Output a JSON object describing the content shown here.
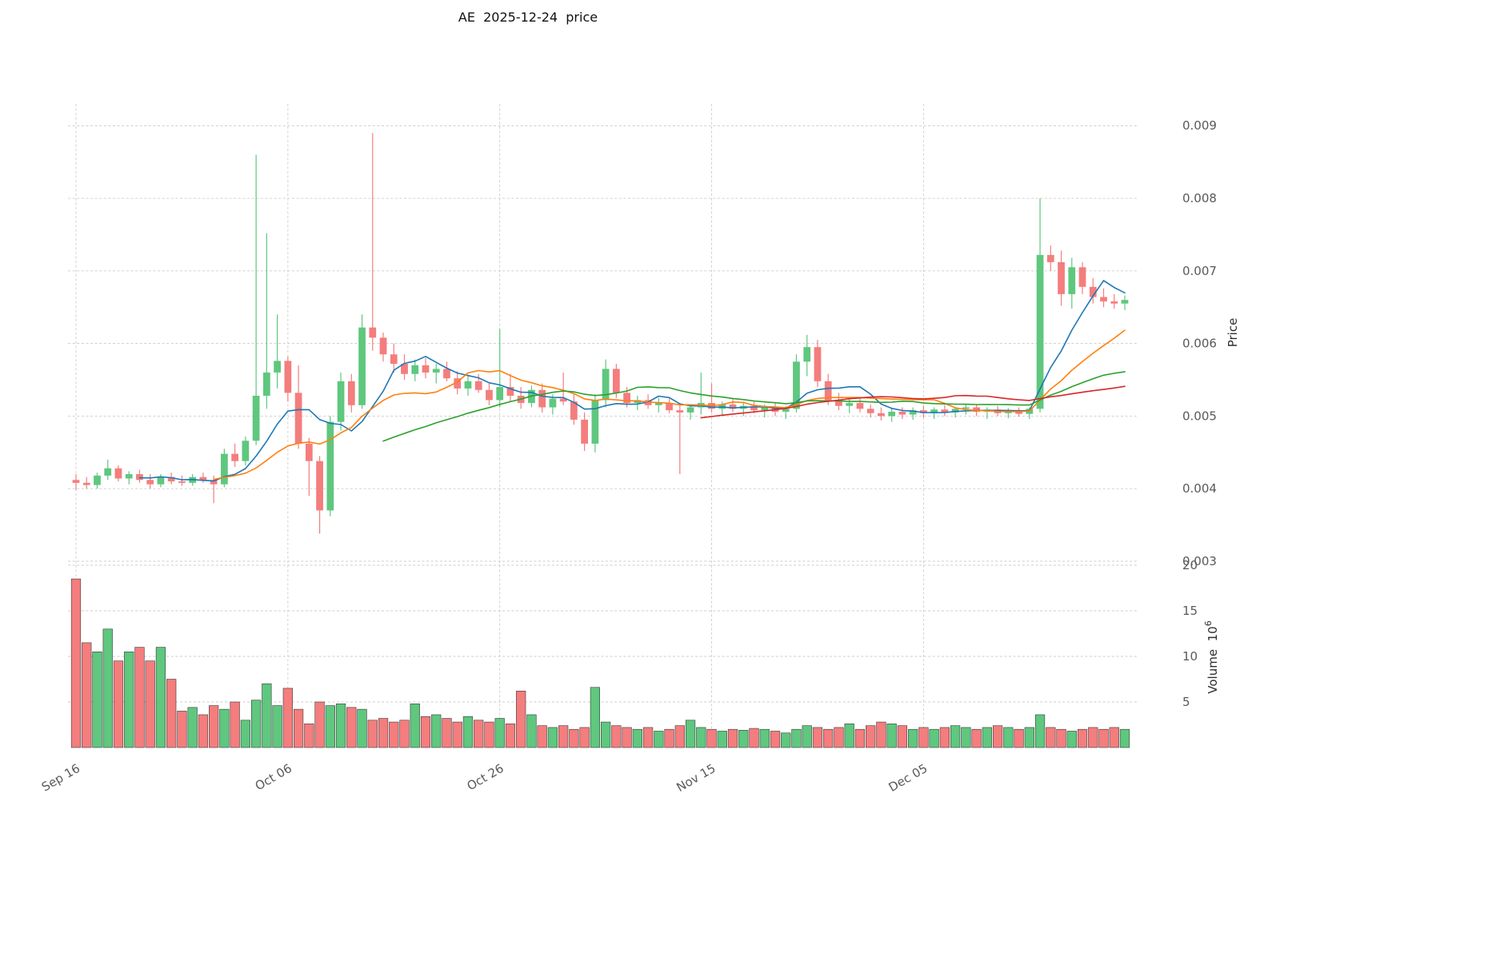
{
  "title": "AE  2025-12-24  price",
  "axes": {
    "price_label": "Price",
    "volume_label": "Volume",
    "volume_unit_base": "  10",
    "volume_exponent": "6",
    "price_ticks": [
      0.003,
      0.004,
      0.005,
      0.006,
      0.007,
      0.008,
      0.009
    ],
    "volume_ticks": [
      5,
      10,
      15,
      20
    ],
    "x_tick_labels": [
      "Sep 16",
      "Oct 06",
      "Oct 26",
      "Nov 15",
      "Dec 05"
    ],
    "x_tick_indices": [
      0,
      20,
      40,
      60,
      80
    ]
  },
  "colors": {
    "up": "#5fc77e",
    "down": "#f47d7d",
    "volume_edge": "#3a3a3a",
    "grid": "#cccccc",
    "tick_text": "#595959"
  },
  "chart_data": {
    "type": "candlestick+volume",
    "title": "AE  2025-12-24  price",
    "ylabel": "Price",
    "ylabel_volume": "Volume 10^6",
    "ylim_price": [
      0.003,
      0.0093
    ],
    "ylim_volume": [
      0,
      20
    ],
    "grid": true,
    "dates": [
      "09-16",
      "09-17",
      "09-18",
      "09-19",
      "09-20",
      "09-21",
      "09-22",
      "09-23",
      "09-24",
      "09-25",
      "09-26",
      "09-27",
      "09-28",
      "09-29",
      "09-30",
      "10-01",
      "10-02",
      "10-03",
      "10-04",
      "10-05",
      "10-06",
      "10-07",
      "10-08",
      "10-09",
      "10-10",
      "10-11",
      "10-12",
      "10-13",
      "10-14",
      "10-15",
      "10-16",
      "10-17",
      "10-18",
      "10-19",
      "10-20",
      "10-21",
      "10-22",
      "10-23",
      "10-24",
      "10-25",
      "10-26",
      "10-27",
      "10-28",
      "10-29",
      "10-30",
      "10-31",
      "11-01",
      "11-02",
      "11-03",
      "11-04",
      "11-05",
      "11-06",
      "11-07",
      "11-08",
      "11-09",
      "11-10",
      "11-11",
      "11-12",
      "11-13",
      "11-14",
      "11-15",
      "11-16",
      "11-17",
      "11-18",
      "11-19",
      "11-20",
      "11-21",
      "11-22",
      "11-23",
      "11-24",
      "11-25",
      "11-26",
      "11-27",
      "11-28",
      "11-29",
      "11-30",
      "12-01",
      "12-02",
      "12-03",
      "12-04",
      "12-05",
      "12-06",
      "12-07",
      "12-08",
      "12-09",
      "12-10",
      "12-11",
      "12-12",
      "12-13",
      "12-14",
      "12-15",
      "12-16",
      "12-17",
      "12-18",
      "12-19",
      "12-20",
      "12-21",
      "12-22",
      "12-23",
      "12-24"
    ],
    "open": [
      0.00412,
      0.00408,
      0.00405,
      0.00418,
      0.00428,
      0.00414,
      0.0042,
      0.00412,
      0.00406,
      0.00416,
      0.0041,
      0.00408,
      0.00416,
      0.00412,
      0.00406,
      0.00448,
      0.00438,
      0.00466,
      0.00528,
      0.0056,
      0.00576,
      0.00532,
      0.00462,
      0.00438,
      0.0037,
      0.00492,
      0.00548,
      0.00515,
      0.00622,
      0.00608,
      0.00585,
      0.00572,
      0.00558,
      0.0057,
      0.0056,
      0.00565,
      0.00552,
      0.00538,
      0.00548,
      0.00536,
      0.00522,
      0.0054,
      0.00528,
      0.00518,
      0.00536,
      0.00512,
      0.00524,
      0.0052,
      0.00495,
      0.00462,
      0.00522,
      0.00565,
      0.00532,
      0.00518,
      0.00522,
      0.00515,
      0.00518,
      0.00508,
      0.00505,
      0.00512,
      0.00518,
      0.0051,
      0.00516,
      0.0051,
      0.00514,
      0.00508,
      0.00512,
      0.00506,
      0.0051,
      0.00575,
      0.00595,
      0.00548,
      0.00522,
      0.00514,
      0.00518,
      0.0051,
      0.00504,
      0.005,
      0.00506,
      0.00502,
      0.00508,
      0.00504,
      0.00509,
      0.00505,
      0.0051,
      0.00512,
      0.00506,
      0.00509,
      0.00504,
      0.00508,
      0.00503,
      0.0051,
      0.00722,
      0.00712,
      0.00668,
      0.00705,
      0.00678,
      0.00664,
      0.00658,
      0.00655
    ],
    "high": [
      0.0042,
      0.00416,
      0.00422,
      0.0044,
      0.00432,
      0.00424,
      0.00426,
      0.0042,
      0.0042,
      0.00422,
      0.00418,
      0.0042,
      0.00422,
      0.00418,
      0.00455,
      0.00462,
      0.00472,
      0.0086,
      0.00752,
      0.0064,
      0.00582,
      0.0057,
      0.0047,
      0.00445,
      0.005,
      0.0056,
      0.00558,
      0.0064,
      0.0089,
      0.00615,
      0.006,
      0.00585,
      0.00578,
      0.0058,
      0.00572,
      0.00575,
      0.00562,
      0.00555,
      0.00558,
      0.00545,
      0.0062,
      0.00558,
      0.0054,
      0.00542,
      0.00545,
      0.0053,
      0.0056,
      0.0053,
      0.00505,
      0.0053,
      0.00578,
      0.00572,
      0.0054,
      0.00528,
      0.0053,
      0.00525,
      0.00524,
      0.00518,
      0.00515,
      0.0056,
      0.00545,
      0.0052,
      0.00524,
      0.00518,
      0.0052,
      0.00516,
      0.00518,
      0.00514,
      0.00585,
      0.00612,
      0.00605,
      0.00558,
      0.00532,
      0.00524,
      0.00524,
      0.00516,
      0.00512,
      0.0051,
      0.00512,
      0.00512,
      0.00514,
      0.00512,
      0.00515,
      0.00512,
      0.00516,
      0.00516,
      0.00512,
      0.00514,
      0.00511,
      0.00512,
      0.00512,
      0.008,
      0.00735,
      0.00728,
      0.00718,
      0.00712,
      0.0069,
      0.00676,
      0.00668,
      0.00666
    ],
    "low": [
      0.00398,
      0.004,
      0.004,
      0.00412,
      0.0041,
      0.00406,
      0.00408,
      0.004,
      0.00402,
      0.00406,
      0.00404,
      0.00404,
      0.00408,
      0.0038,
      0.00402,
      0.0043,
      0.00432,
      0.0046,
      0.0051,
      0.00538,
      0.0052,
      0.00455,
      0.0039,
      0.00338,
      0.00362,
      0.0048,
      0.00505,
      0.0051,
      0.0059,
      0.00575,
      0.0056,
      0.0055,
      0.00548,
      0.00552,
      0.00545,
      0.00548,
      0.0053,
      0.00528,
      0.00532,
      0.00515,
      0.00512,
      0.0052,
      0.0051,
      0.00512,
      0.00505,
      0.00502,
      0.00515,
      0.00488,
      0.00452,
      0.0045,
      0.00512,
      0.00525,
      0.00512,
      0.00508,
      0.0051,
      0.00505,
      0.00504,
      0.0042,
      0.00495,
      0.00502,
      0.00505,
      0.005,
      0.00506,
      0.005,
      0.00504,
      0.00498,
      0.005,
      0.00496,
      0.00505,
      0.00555,
      0.0054,
      0.00515,
      0.00508,
      0.00504,
      0.00505,
      0.00498,
      0.00494,
      0.00492,
      0.00496,
      0.00495,
      0.00498,
      0.00496,
      0.005,
      0.00498,
      0.00502,
      0.005,
      0.00496,
      0.005,
      0.00497,
      0.00499,
      0.00496,
      0.00505,
      0.007,
      0.00652,
      0.00648,
      0.00668,
      0.00655,
      0.0065,
      0.00648,
      0.00646
    ],
    "close": [
      0.00408,
      0.00405,
      0.00418,
      0.00428,
      0.00414,
      0.0042,
      0.00412,
      0.00406,
      0.00416,
      0.0041,
      0.00408,
      0.00416,
      0.00412,
      0.00406,
      0.00448,
      0.00438,
      0.00466,
      0.00528,
      0.0056,
      0.00576,
      0.00532,
      0.00462,
      0.00438,
      0.0037,
      0.00492,
      0.00548,
      0.00515,
      0.00622,
      0.00608,
      0.00585,
      0.00572,
      0.00558,
      0.0057,
      0.0056,
      0.00565,
      0.00552,
      0.00538,
      0.00548,
      0.00536,
      0.00522,
      0.0054,
      0.00528,
      0.00518,
      0.00536,
      0.00512,
      0.00524,
      0.0052,
      0.00495,
      0.00462,
      0.00522,
      0.00565,
      0.00532,
      0.00518,
      0.00522,
      0.00515,
      0.00518,
      0.00508,
      0.00505,
      0.00512,
      0.00518,
      0.0051,
      0.00516,
      0.0051,
      0.00514,
      0.00508,
      0.00512,
      0.00506,
      0.0051,
      0.00575,
      0.00595,
      0.00548,
      0.00522,
      0.00514,
      0.00518,
      0.0051,
      0.00504,
      0.005,
      0.00506,
      0.00502,
      0.00508,
      0.00504,
      0.00509,
      0.00505,
      0.0051,
      0.00512,
      0.00506,
      0.00509,
      0.00504,
      0.00508,
      0.00503,
      0.0051,
      0.00722,
      0.00712,
      0.00668,
      0.00705,
      0.00678,
      0.00664,
      0.00658,
      0.00655,
      0.0066
    ],
    "volume_millions": [
      18.5,
      11.5,
      10.5,
      13.0,
      9.5,
      10.5,
      11.0,
      9.5,
      11.0,
      7.5,
      4.0,
      4.4,
      3.6,
      4.6,
      4.2,
      5.0,
      3.0,
      5.2,
      7.0,
      4.6,
      6.5,
      4.2,
      2.6,
      5.0,
      4.6,
      4.8,
      4.4,
      4.2,
      3.0,
      3.2,
      2.8,
      3.0,
      4.8,
      3.4,
      3.6,
      3.2,
      2.8,
      3.4,
      3.0,
      2.8,
      3.2,
      2.6,
      6.2,
      3.6,
      2.4,
      2.2,
      2.4,
      2.0,
      2.2,
      6.6,
      2.8,
      2.4,
      2.2,
      2.0,
      2.2,
      1.8,
      2.0,
      2.4,
      3.0,
      2.2,
      2.0,
      1.8,
      2.0,
      1.9,
      2.1,
      2.0,
      1.8,
      1.6,
      2.0,
      2.4,
      2.2,
      2.0,
      2.2,
      2.6,
      2.0,
      2.4,
      2.8,
      2.6,
      2.4,
      2.0,
      2.2,
      2.0,
      2.2,
      2.4,
      2.2,
      2.0,
      2.2,
      2.4,
      2.2,
      2.0,
      2.2,
      3.6,
      2.2,
      2.0,
      1.8,
      2.0,
      2.2,
      2.0,
      2.2,
      2.0
    ],
    "moving_averages": [
      {
        "name": "SMA7",
        "period": 7,
        "color": "#1f77b4"
      },
      {
        "name": "SMA14",
        "period": 14,
        "color": "#ff7f0e"
      },
      {
        "name": "SMA30",
        "period": 30,
        "color": "#2ca02c"
      },
      {
        "name": "SMA60",
        "period": 60,
        "color": "#d62728"
      }
    ]
  }
}
